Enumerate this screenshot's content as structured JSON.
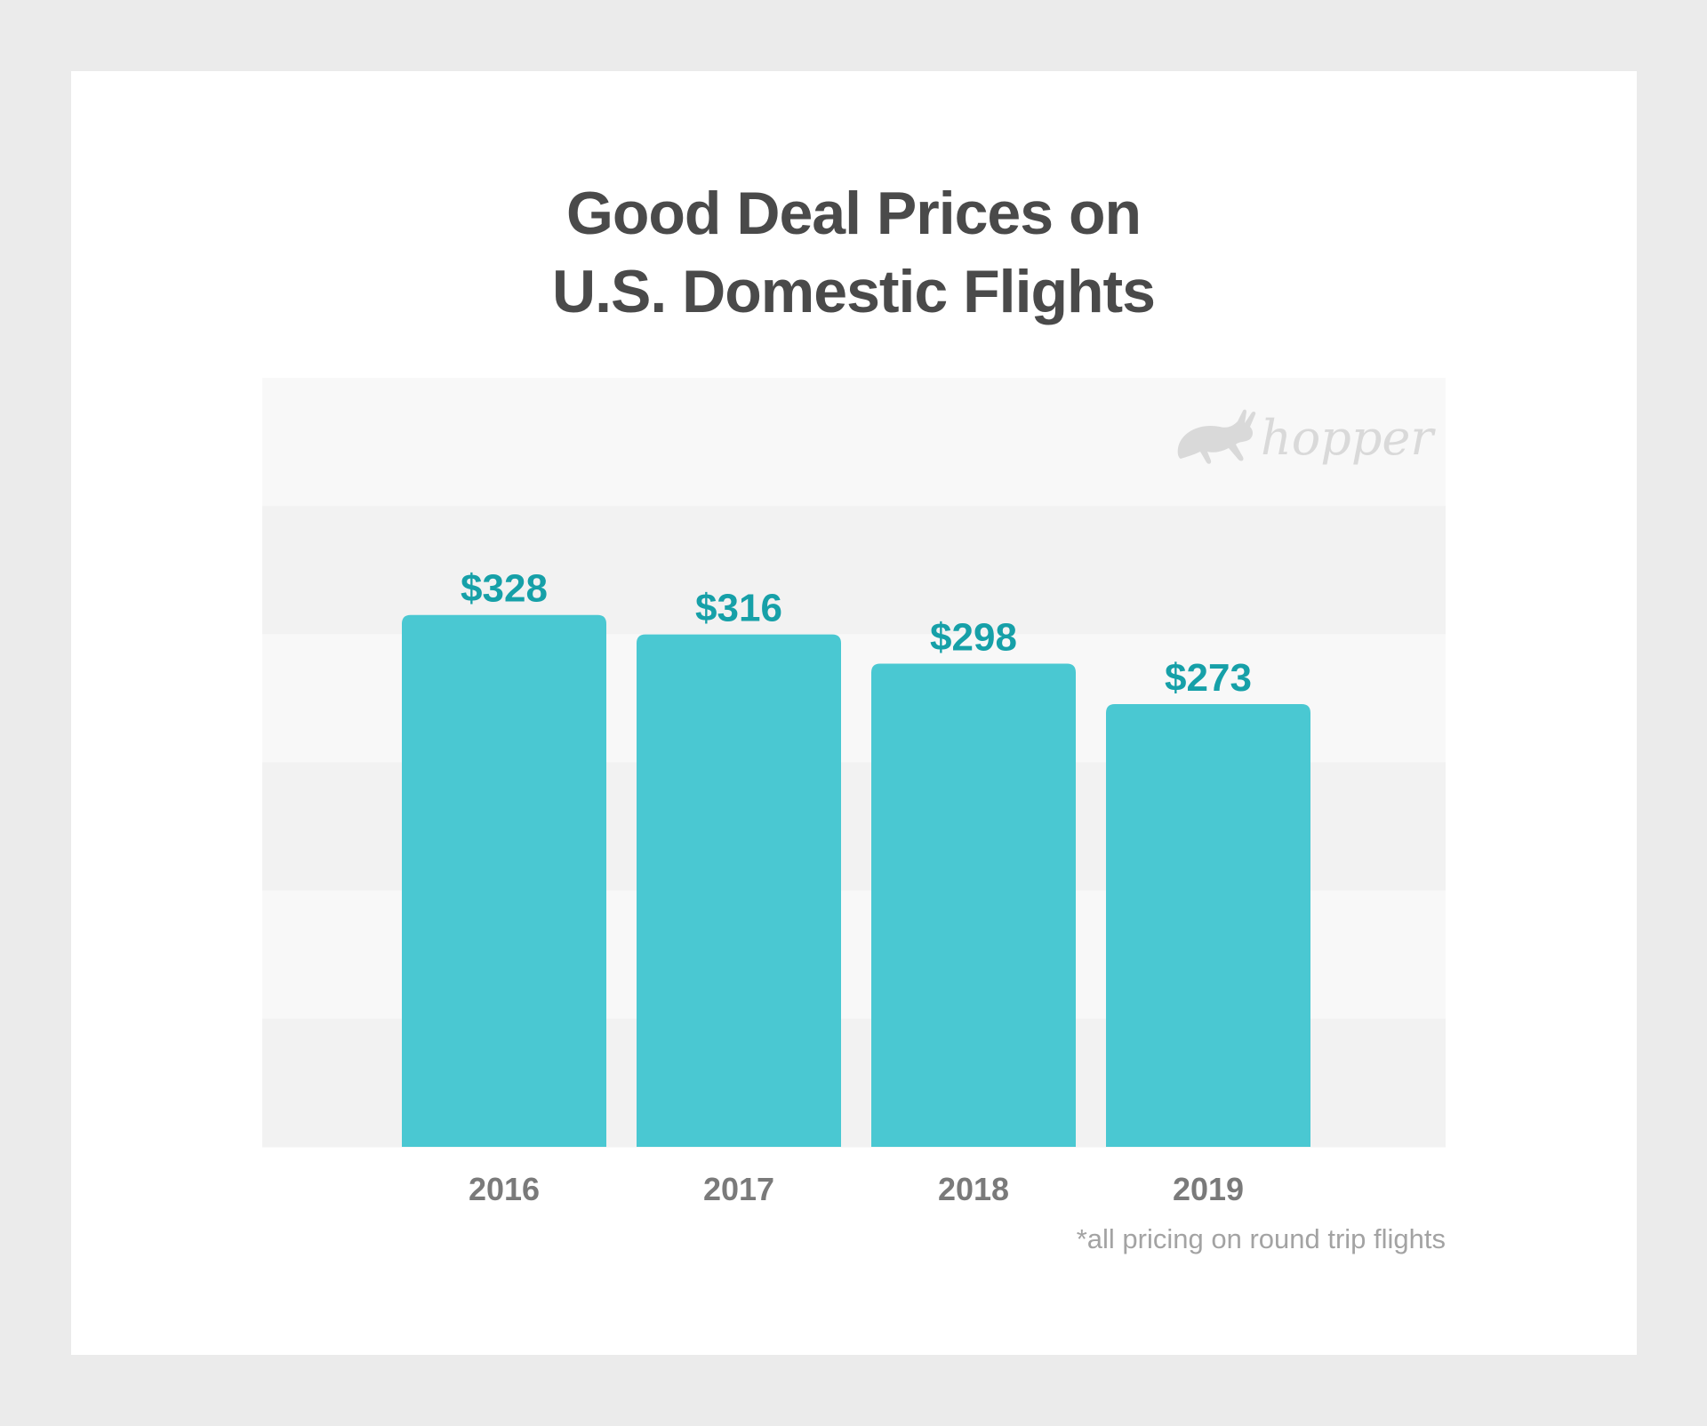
{
  "title_line1": "Good Deal Prices on",
  "title_line2": "U.S. Domestic Flights",
  "logo_text": "hopper",
  "footnote": "*all pricing on round trip flights",
  "colors": {
    "background": "#ebebeb",
    "card": "#ffffff",
    "bar": "#4ac8d2",
    "value_label": "#16a0a8",
    "band_light": "#f8f8f8",
    "band_dark": "#f2f2f2",
    "tick_label": "#7a7a7a"
  },
  "chart_data": {
    "type": "bar",
    "title": "Good Deal Prices on U.S. Domestic Flights",
    "categories": [
      "2016",
      "2017",
      "2018",
      "2019"
    ],
    "values": [
      328,
      316,
      298,
      273
    ],
    "value_labels": [
      "$328",
      "$316",
      "$298",
      "$273"
    ],
    "ylim": [
      0,
      400
    ],
    "grid": "alternating horizontal bands",
    "xlabel": "",
    "ylabel": ""
  }
}
